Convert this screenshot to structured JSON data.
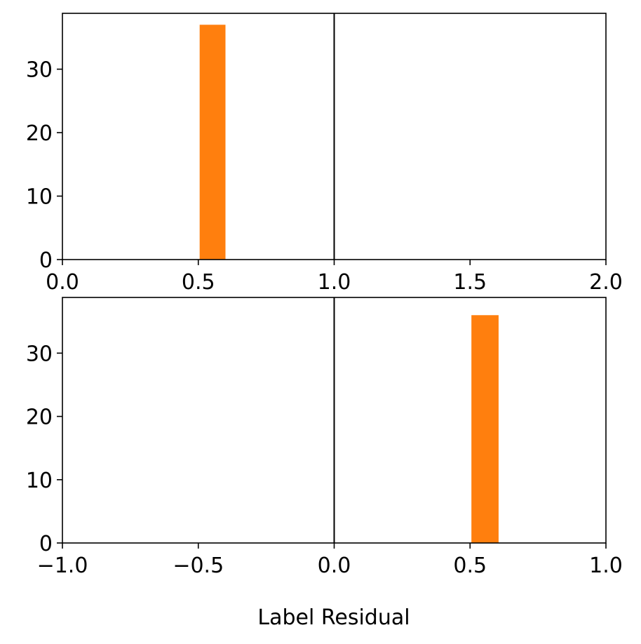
{
  "xlabel": "Label Residual",
  "chart_data": [
    {
      "type": "bar",
      "name": "top-panel",
      "xlim": [
        0.0,
        2.0
      ],
      "ylim": [
        0,
        38.8
      ],
      "xticks": [
        0.0,
        0.5,
        1.0,
        1.5,
        2.0
      ],
      "xtick_labels": [
        "0.0",
        "0.5",
        "1.0",
        "1.5",
        "2.0"
      ],
      "yticks": [
        0,
        10,
        20,
        30
      ],
      "ytick_labels": [
        "0",
        "10",
        "20",
        "30"
      ],
      "bars": [
        {
          "x0": 0.505,
          "x1": 0.6,
          "value": 37
        }
      ],
      "vline": 1.0,
      "bar_color": "#ff7f0e",
      "xlabel": "",
      "grid": false
    },
    {
      "type": "bar",
      "name": "bottom-panel",
      "xlim": [
        -1.0,
        1.0
      ],
      "ylim": [
        0,
        38.8
      ],
      "xticks": [
        -1.0,
        -0.5,
        0.0,
        0.5,
        1.0
      ],
      "xtick_labels": [
        "−1.0",
        "−0.5",
        "0.0",
        "0.5",
        "1.0"
      ],
      "yticks": [
        0,
        10,
        20,
        30
      ],
      "ytick_labels": [
        "0",
        "10",
        "20",
        "30"
      ],
      "bars": [
        {
          "x0": 0.505,
          "x1": 0.605,
          "value": 36
        }
      ],
      "vline": 0.0,
      "bar_color": "#ff7f0e",
      "xlabel": "Label Residual",
      "grid": false
    }
  ]
}
